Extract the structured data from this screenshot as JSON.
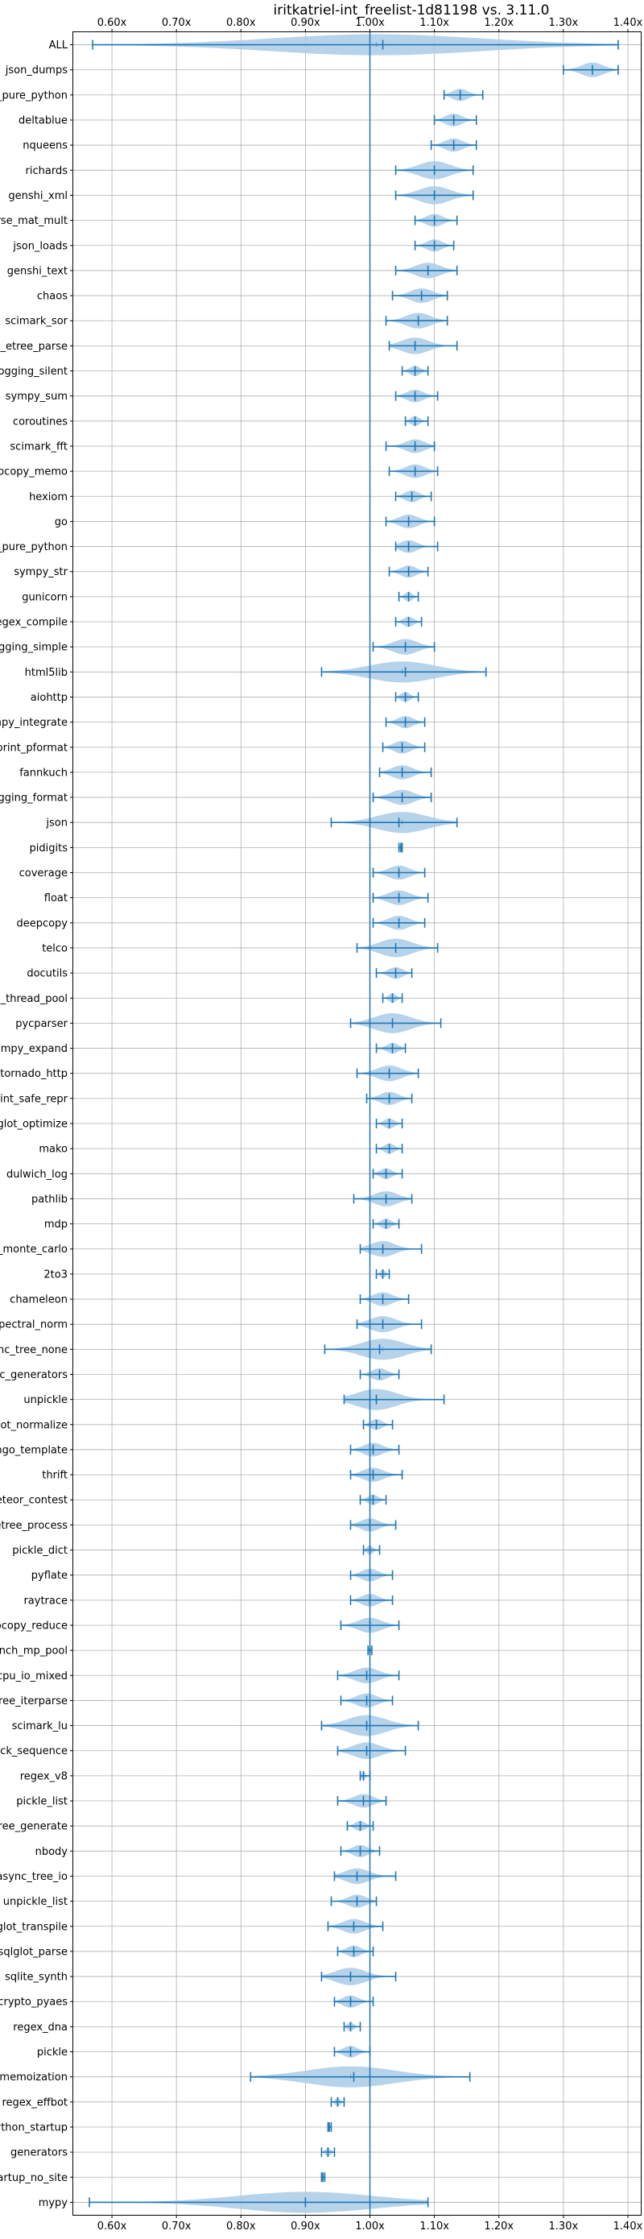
{
  "chart_data": {
    "type": "violin",
    "title": "iritkatriel-int_freelist-1d81198 vs. 3.11.0",
    "xlabel": "",
    "ylabel": "",
    "xlim": [
      0.54,
      1.42
    ],
    "xticks": [
      0.6,
      0.7,
      0.8,
      0.9,
      1.0,
      1.1,
      1.2,
      1.3,
      1.4
    ],
    "xtick_labels": [
      "0.60x",
      "0.70x",
      "0.80x",
      "0.90x",
      "1.00x",
      "1.10x",
      "1.20x",
      "1.30x",
      "1.40x"
    ],
    "xticks_top_and_bottom": true,
    "reference_line": 1.0,
    "grid": true,
    "colors": {
      "violin": "#1f77b4",
      "violin_fill": "#a9cbe6",
      "line": "#1f77b4",
      "grid": "#b0b0b0"
    },
    "benchmarks": [
      {
        "name": "ALL",
        "min": 0.57,
        "max": 1.385,
        "mean": 1.02,
        "median": 1.01
      },
      {
        "name": "json_dumps",
        "min": 1.3,
        "max": 1.385,
        "mean": 1.345,
        "median": 1.345
      },
      {
        "name": "unpickle_pure_python",
        "min": 1.115,
        "max": 1.175,
        "mean": 1.14,
        "median": 1.14
      },
      {
        "name": "deltablue",
        "min": 1.1,
        "max": 1.165,
        "mean": 1.13,
        "median": 1.13
      },
      {
        "name": "nqueens",
        "min": 1.095,
        "max": 1.165,
        "mean": 1.13,
        "median": 1.13
      },
      {
        "name": "richards",
        "min": 1.04,
        "max": 1.16,
        "mean": 1.1,
        "median": 1.1
      },
      {
        "name": "genshi_xml",
        "min": 1.04,
        "max": 1.16,
        "mean": 1.1,
        "median": 1.1
      },
      {
        "name": "scimark_sparse_mat_mult",
        "min": 1.07,
        "max": 1.135,
        "mean": 1.1,
        "median": 1.1
      },
      {
        "name": "json_loads",
        "min": 1.07,
        "max": 1.13,
        "mean": 1.1,
        "median": 1.1
      },
      {
        "name": "genshi_text",
        "min": 1.04,
        "max": 1.135,
        "mean": 1.09,
        "median": 1.09
      },
      {
        "name": "chaos",
        "min": 1.035,
        "max": 1.12,
        "mean": 1.08,
        "median": 1.08
      },
      {
        "name": "scimark_sor",
        "min": 1.025,
        "max": 1.12,
        "mean": 1.075,
        "median": 1.075
      },
      {
        "name": "xml_etree_parse",
        "min": 1.03,
        "max": 1.135,
        "mean": 1.07,
        "median": 1.07
      },
      {
        "name": "logging_silent",
        "min": 1.05,
        "max": 1.09,
        "mean": 1.07,
        "median": 1.07
      },
      {
        "name": "sympy_sum",
        "min": 1.04,
        "max": 1.105,
        "mean": 1.07,
        "median": 1.07
      },
      {
        "name": "coroutines",
        "min": 1.055,
        "max": 1.09,
        "mean": 1.07,
        "median": 1.07
      },
      {
        "name": "scimark_fft",
        "min": 1.025,
        "max": 1.1,
        "mean": 1.07,
        "median": 1.07
      },
      {
        "name": "deepcopy_memo",
        "min": 1.03,
        "max": 1.105,
        "mean": 1.07,
        "median": 1.07
      },
      {
        "name": "hexiom",
        "min": 1.04,
        "max": 1.095,
        "mean": 1.065,
        "median": 1.065
      },
      {
        "name": "go",
        "min": 1.025,
        "max": 1.1,
        "mean": 1.06,
        "median": 1.06
      },
      {
        "name": "pickle_pure_python",
        "min": 1.04,
        "max": 1.105,
        "mean": 1.06,
        "median": 1.06
      },
      {
        "name": "sympy_str",
        "min": 1.03,
        "max": 1.09,
        "mean": 1.06,
        "median": 1.06
      },
      {
        "name": "gunicorn",
        "min": 1.045,
        "max": 1.075,
        "mean": 1.06,
        "median": 1.06
      },
      {
        "name": "regex_compile",
        "min": 1.04,
        "max": 1.08,
        "mean": 1.06,
        "median": 1.06
      },
      {
        "name": "logging_simple",
        "min": 1.005,
        "max": 1.1,
        "mean": 1.055,
        "median": 1.055
      },
      {
        "name": "html5lib",
        "min": 0.925,
        "max": 1.18,
        "mean": 1.055,
        "median": 1.05
      },
      {
        "name": "aiohttp",
        "min": 1.04,
        "max": 1.075,
        "mean": 1.055,
        "median": 1.055
      },
      {
        "name": "sympy_integrate",
        "min": 1.025,
        "max": 1.085,
        "mean": 1.055,
        "median": 1.055
      },
      {
        "name": "pprint_pformat",
        "min": 1.02,
        "max": 1.085,
        "mean": 1.05,
        "median": 1.05
      },
      {
        "name": "fannkuch",
        "min": 1.015,
        "max": 1.095,
        "mean": 1.05,
        "median": 1.05
      },
      {
        "name": "logging_format",
        "min": 1.005,
        "max": 1.095,
        "mean": 1.05,
        "median": 1.05
      },
      {
        "name": "json",
        "min": 0.94,
        "max": 1.135,
        "mean": 1.045,
        "median": 1.05
      },
      {
        "name": "pidigits",
        "min": 1.045,
        "max": 1.05,
        "mean": 1.048,
        "median": 1.048
      },
      {
        "name": "coverage",
        "min": 1.005,
        "max": 1.085,
        "mean": 1.045,
        "median": 1.045
      },
      {
        "name": "float",
        "min": 1.005,
        "max": 1.09,
        "mean": 1.045,
        "median": 1.045
      },
      {
        "name": "deepcopy",
        "min": 1.005,
        "max": 1.085,
        "mean": 1.045,
        "median": 1.045
      },
      {
        "name": "telco",
        "min": 0.98,
        "max": 1.105,
        "mean": 1.04,
        "median": 1.04
      },
      {
        "name": "docutils",
        "min": 1.01,
        "max": 1.065,
        "mean": 1.04,
        "median": 1.04
      },
      {
        "name": "bench_thread_pool",
        "min": 1.02,
        "max": 1.05,
        "mean": 1.035,
        "median": 1.035
      },
      {
        "name": "pycparser",
        "min": 0.97,
        "max": 1.11,
        "mean": 1.035,
        "median": 1.035
      },
      {
        "name": "sympy_expand",
        "min": 1.01,
        "max": 1.055,
        "mean": 1.035,
        "median": 1.035
      },
      {
        "name": "tornado_http",
        "min": 0.98,
        "max": 1.075,
        "mean": 1.03,
        "median": 1.03
      },
      {
        "name": "pprint_safe_repr",
        "min": 0.995,
        "max": 1.065,
        "mean": 1.03,
        "median": 1.03
      },
      {
        "name": "sqlglot_optimize",
        "min": 1.01,
        "max": 1.05,
        "mean": 1.03,
        "median": 1.03
      },
      {
        "name": "mako",
        "min": 1.01,
        "max": 1.05,
        "mean": 1.03,
        "median": 1.03
      },
      {
        "name": "dulwich_log",
        "min": 1.005,
        "max": 1.05,
        "mean": 1.025,
        "median": 1.025
      },
      {
        "name": "pathlib",
        "min": 0.975,
        "max": 1.065,
        "mean": 1.025,
        "median": 1.025
      },
      {
        "name": "mdp",
        "min": 1.005,
        "max": 1.045,
        "mean": 1.025,
        "median": 1.025
      },
      {
        "name": "scimark_monte_carlo",
        "min": 0.985,
        "max": 1.08,
        "mean": 1.02,
        "median": 1.02
      },
      {
        "name": "2to3",
        "min": 1.01,
        "max": 1.03,
        "mean": 1.02,
        "median": 1.02
      },
      {
        "name": "chameleon",
        "min": 0.985,
        "max": 1.06,
        "mean": 1.02,
        "median": 1.02
      },
      {
        "name": "spectral_norm",
        "min": 0.98,
        "max": 1.08,
        "mean": 1.02,
        "median": 1.02
      },
      {
        "name": "async_tree_none",
        "min": 0.93,
        "max": 1.095,
        "mean": 1.015,
        "median": 1.02
      },
      {
        "name": "async_generators",
        "min": 0.985,
        "max": 1.045,
        "mean": 1.015,
        "median": 1.015
      },
      {
        "name": "unpickle",
        "min": 0.96,
        "max": 1.115,
        "mean": 1.01,
        "median": 1.01
      },
      {
        "name": "sqlglot_normalize",
        "min": 0.99,
        "max": 1.035,
        "mean": 1.01,
        "median": 1.01
      },
      {
        "name": "django_template",
        "min": 0.97,
        "max": 1.045,
        "mean": 1.005,
        "median": 1.005
      },
      {
        "name": "thrift",
        "min": 0.97,
        "max": 1.05,
        "mean": 1.005,
        "median": 1.005
      },
      {
        "name": "meteor_contest",
        "min": 0.985,
        "max": 1.025,
        "mean": 1.005,
        "median": 1.005
      },
      {
        "name": "xml_etree_process",
        "min": 0.97,
        "max": 1.04,
        "mean": 1.0,
        "median": 1.0
      },
      {
        "name": "pickle_dict",
        "min": 0.99,
        "max": 1.015,
        "mean": 1.0,
        "median": 1.0
      },
      {
        "name": "pyflate",
        "min": 0.97,
        "max": 1.035,
        "mean": 1.0,
        "median": 1.0
      },
      {
        "name": "raytrace",
        "min": 0.97,
        "max": 1.035,
        "mean": 1.0,
        "median": 1.0
      },
      {
        "name": "deepcopy_reduce",
        "min": 0.955,
        "max": 1.045,
        "mean": 1.0,
        "median": 1.0
      },
      {
        "name": "bench_mp_pool",
        "min": 0.997,
        "max": 1.003,
        "mean": 1.0,
        "median": 1.0
      },
      {
        "name": "async_tree_cpu_io_mixed",
        "min": 0.95,
        "max": 1.045,
        "mean": 0.995,
        "median": 0.995
      },
      {
        "name": "xml_etree_iterparse",
        "min": 0.955,
        "max": 1.035,
        "mean": 0.995,
        "median": 0.995
      },
      {
        "name": "scimark_lu",
        "min": 0.925,
        "max": 1.075,
        "mean": 0.995,
        "median": 0.995
      },
      {
        "name": "unpack_sequence",
        "min": 0.95,
        "max": 1.055,
        "mean": 0.995,
        "median": 0.995
      },
      {
        "name": "regex_v8",
        "min": 0.985,
        "max": 1.0,
        "mean": 0.99,
        "median": 0.99
      },
      {
        "name": "pickle_list",
        "min": 0.95,
        "max": 1.025,
        "mean": 0.99,
        "median": 0.99
      },
      {
        "name": "xml_etree_generate",
        "min": 0.965,
        "max": 1.005,
        "mean": 0.985,
        "median": 0.985
      },
      {
        "name": "nbody",
        "min": 0.955,
        "max": 1.015,
        "mean": 0.985,
        "median": 0.985
      },
      {
        "name": "async_tree_io",
        "min": 0.945,
        "max": 1.04,
        "mean": 0.98,
        "median": 0.98
      },
      {
        "name": "unpickle_list",
        "min": 0.94,
        "max": 1.01,
        "mean": 0.98,
        "median": 0.98
      },
      {
        "name": "sqlglot_transpile",
        "min": 0.935,
        "max": 1.02,
        "mean": 0.975,
        "median": 0.975
      },
      {
        "name": "sqlglot_parse",
        "min": 0.95,
        "max": 1.005,
        "mean": 0.975,
        "median": 0.975
      },
      {
        "name": "sqlite_synth",
        "min": 0.925,
        "max": 1.04,
        "mean": 0.97,
        "median": 0.97
      },
      {
        "name": "crypto_pyaes",
        "min": 0.945,
        "max": 1.005,
        "mean": 0.97,
        "median": 0.97
      },
      {
        "name": "regex_dna",
        "min": 0.96,
        "max": 0.985,
        "mean": 0.97,
        "median": 0.97
      },
      {
        "name": "pickle",
        "min": 0.945,
        "max": 1.0,
        "mean": 0.97,
        "median": 0.97
      },
      {
        "name": "async_tree_memoization",
        "min": 0.815,
        "max": 1.155,
        "mean": 0.975,
        "median": 0.97
      },
      {
        "name": "regex_effbot",
        "min": 0.94,
        "max": 0.96,
        "mean": 0.95,
        "median": 0.95
      },
      {
        "name": "python_startup",
        "min": 0.935,
        "max": 0.94,
        "mean": 0.937,
        "median": 0.937
      },
      {
        "name": "generators",
        "min": 0.925,
        "max": 0.945,
        "mean": 0.935,
        "median": 0.935
      },
      {
        "name": "python_startup_no_site",
        "min": 0.925,
        "max": 0.93,
        "mean": 0.927,
        "median": 0.927
      },
      {
        "name": "mypy",
        "min": 0.565,
        "max": 1.09,
        "mean": 0.9,
        "median": 0.9
      }
    ]
  }
}
